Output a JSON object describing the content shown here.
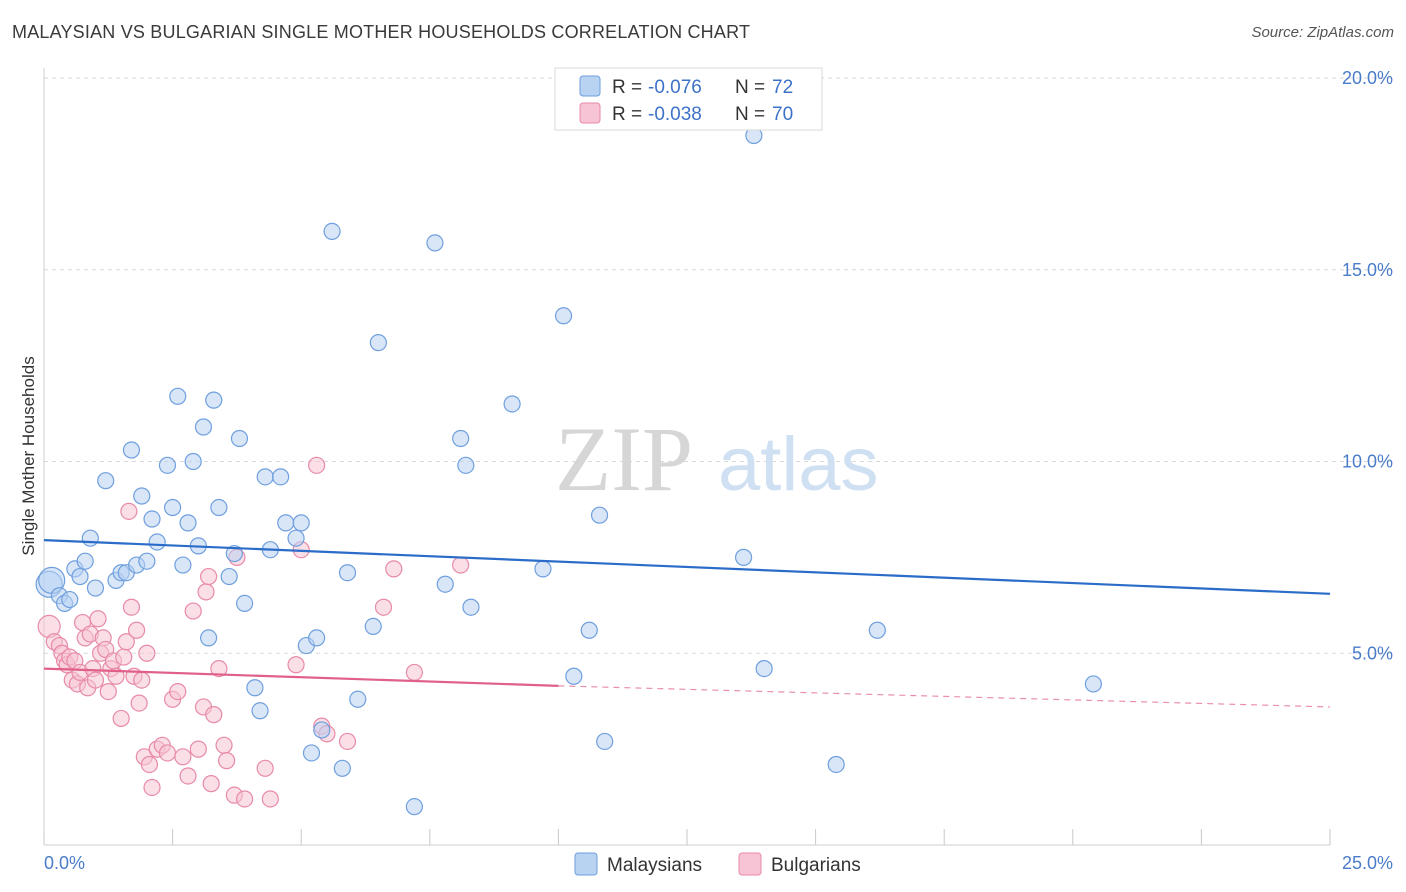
{
  "header": {
    "title": "MALAYSIAN VS BULGARIAN SINGLE MOTHER HOUSEHOLDS CORRELATION CHART",
    "source": "Source: ZipAtlas.com"
  },
  "watermark": {
    "zip": "ZIP",
    "atlas": "atlas"
  },
  "colors": {
    "blue": "#6f9fde",
    "blue_fill": "#b8d2f2",
    "blue_line": "#2a6cc8",
    "pink": "#e88aa8",
    "pink_fill": "#f6c4d4",
    "pink_line": "#e0608a",
    "grid": "#d9d9d9",
    "axis_label": "#4a7cc9"
  },
  "legend": {
    "rows": [
      {
        "r_label": "R =",
        "r_value": "-0.076",
        "n_label": "N =",
        "n_value": "72"
      },
      {
        "r_label": "R =",
        "r_value": "-0.038",
        "n_label": "N =",
        "n_value": "70"
      }
    ]
  },
  "bottom_legend": {
    "series1": "Malaysians",
    "series2": "Bulgarians"
  },
  "chart_data": {
    "type": "scatter",
    "title": "MALAYSIAN VS BULGARIAN SINGLE MOTHER HOUSEHOLDS CORRELATION CHART",
    "ylabel": "Single Mother Households",
    "xlabel": "",
    "xlim": [
      0,
      25
    ],
    "ylim": [
      0,
      20
    ],
    "x_tick_labels": [
      "0.0%",
      "25.0%"
    ],
    "y_ticks": [
      5,
      10,
      15,
      20
    ],
    "y_tick_labels": [
      "5.0%",
      "10.0%",
      "15.0%",
      "20.0%"
    ],
    "series": [
      {
        "name": "Malaysians",
        "r": -0.076,
        "n": 72,
        "trend": {
          "x": [
            0,
            25
          ],
          "y": [
            7.95,
            6.55
          ]
        },
        "points": [
          [
            0.1,
            6.8
          ],
          [
            0.15,
            6.9
          ],
          [
            0.3,
            6.5
          ],
          [
            0.4,
            6.3
          ],
          [
            0.5,
            6.4
          ],
          [
            0.6,
            7.2
          ],
          [
            0.7,
            7.0
          ],
          [
            0.8,
            7.4
          ],
          [
            0.9,
            8.0
          ],
          [
            1.0,
            6.7
          ],
          [
            1.2,
            9.5
          ],
          [
            1.4,
            6.9
          ],
          [
            1.5,
            7.1
          ],
          [
            1.6,
            7.1
          ],
          [
            1.7,
            10.3
          ],
          [
            1.8,
            7.3
          ],
          [
            1.9,
            9.1
          ],
          [
            2.0,
            7.4
          ],
          [
            2.1,
            8.5
          ],
          [
            2.2,
            7.9
          ],
          [
            2.4,
            9.9
          ],
          [
            2.5,
            8.8
          ],
          [
            2.6,
            11.7
          ],
          [
            2.7,
            7.3
          ],
          [
            2.8,
            8.4
          ],
          [
            2.9,
            10.0
          ],
          [
            3.0,
            7.8
          ],
          [
            3.1,
            10.9
          ],
          [
            3.2,
            5.4
          ],
          [
            3.3,
            11.6
          ],
          [
            3.4,
            8.8
          ],
          [
            3.6,
            7.0
          ],
          [
            3.7,
            7.6
          ],
          [
            3.8,
            10.6
          ],
          [
            3.9,
            6.3
          ],
          [
            4.1,
            4.1
          ],
          [
            4.2,
            3.5
          ],
          [
            4.3,
            9.6
          ],
          [
            4.4,
            7.7
          ],
          [
            4.6,
            9.6
          ],
          [
            4.7,
            8.4
          ],
          [
            4.9,
            8.0
          ],
          [
            5.0,
            8.4
          ],
          [
            5.1,
            5.2
          ],
          [
            5.2,
            2.4
          ],
          [
            5.3,
            5.4
          ],
          [
            5.4,
            3.0
          ],
          [
            5.6,
            16.0
          ],
          [
            5.8,
            2.0
          ],
          [
            5.9,
            7.1
          ],
          [
            6.1,
            3.8
          ],
          [
            6.4,
            5.7
          ],
          [
            6.5,
            13.1
          ],
          [
            7.2,
            1.0
          ],
          [
            7.6,
            15.7
          ],
          [
            7.8,
            6.8
          ],
          [
            8.1,
            10.6
          ],
          [
            8.2,
            9.9
          ],
          [
            8.3,
            6.2
          ],
          [
            9.1,
            11.5
          ],
          [
            9.7,
            7.2
          ],
          [
            10.1,
            13.8
          ],
          [
            10.3,
            4.4
          ],
          [
            10.6,
            5.6
          ],
          [
            10.8,
            8.6
          ],
          [
            10.9,
            2.7
          ],
          [
            13.6,
            7.5
          ],
          [
            13.8,
            18.5
          ],
          [
            14.0,
            4.6
          ],
          [
            15.4,
            2.1
          ],
          [
            16.2,
            5.6
          ],
          [
            20.4,
            4.2
          ]
        ]
      },
      {
        "name": "Bulgarians",
        "r": -0.038,
        "n": 70,
        "trend": {
          "x": [
            0,
            10
          ],
          "y": [
            4.6,
            4.15
          ]
        },
        "trend_dashed": {
          "x": [
            10,
            25
          ],
          "y": [
            4.15,
            3.6
          ]
        },
        "points": [
          [
            0.1,
            5.7
          ],
          [
            0.2,
            5.3
          ],
          [
            0.3,
            5.2
          ],
          [
            0.35,
            5.0
          ],
          [
            0.4,
            4.8
          ],
          [
            0.45,
            4.7
          ],
          [
            0.5,
            4.9
          ],
          [
            0.55,
            4.3
          ],
          [
            0.6,
            4.8
          ],
          [
            0.65,
            4.2
          ],
          [
            0.7,
            4.5
          ],
          [
            0.75,
            5.8
          ],
          [
            0.8,
            5.4
          ],
          [
            0.85,
            4.1
          ],
          [
            0.9,
            5.5
          ],
          [
            0.95,
            4.6
          ],
          [
            1.0,
            4.3
          ],
          [
            1.05,
            5.9
          ],
          [
            1.1,
            5.0
          ],
          [
            1.15,
            5.4
          ],
          [
            1.2,
            5.1
          ],
          [
            1.25,
            4.0
          ],
          [
            1.3,
            4.6
          ],
          [
            1.35,
            4.8
          ],
          [
            1.4,
            4.4
          ],
          [
            1.5,
            3.3
          ],
          [
            1.55,
            4.9
          ],
          [
            1.6,
            5.3
          ],
          [
            1.65,
            8.7
          ],
          [
            1.7,
            6.2
          ],
          [
            1.75,
            4.4
          ],
          [
            1.8,
            5.6
          ],
          [
            1.85,
            3.7
          ],
          [
            1.9,
            4.3
          ],
          [
            1.95,
            2.3
          ],
          [
            2.0,
            5.0
          ],
          [
            2.05,
            2.1
          ],
          [
            2.1,
            1.5
          ],
          [
            2.2,
            2.5
          ],
          [
            2.3,
            2.6
          ],
          [
            2.4,
            2.4
          ],
          [
            2.5,
            3.8
          ],
          [
            2.6,
            4.0
          ],
          [
            2.7,
            2.3
          ],
          [
            2.8,
            1.8
          ],
          [
            2.9,
            6.1
          ],
          [
            3.0,
            2.5
          ],
          [
            3.1,
            3.6
          ],
          [
            3.15,
            6.6
          ],
          [
            3.2,
            7.0
          ],
          [
            3.25,
            1.6
          ],
          [
            3.3,
            3.4
          ],
          [
            3.4,
            4.6
          ],
          [
            3.5,
            2.6
          ],
          [
            3.55,
            2.2
          ],
          [
            3.7,
            1.3
          ],
          [
            3.75,
            7.5
          ],
          [
            3.9,
            1.2
          ],
          [
            4.3,
            2.0
          ],
          [
            4.4,
            1.2
          ],
          [
            4.9,
            4.7
          ],
          [
            5.0,
            7.7
          ],
          [
            5.3,
            9.9
          ],
          [
            5.4,
            3.1
          ],
          [
            5.5,
            2.9
          ],
          [
            5.9,
            2.7
          ],
          [
            6.6,
            6.2
          ],
          [
            6.8,
            7.2
          ],
          [
            7.2,
            4.5
          ],
          [
            8.1,
            7.3
          ]
        ]
      }
    ]
  }
}
